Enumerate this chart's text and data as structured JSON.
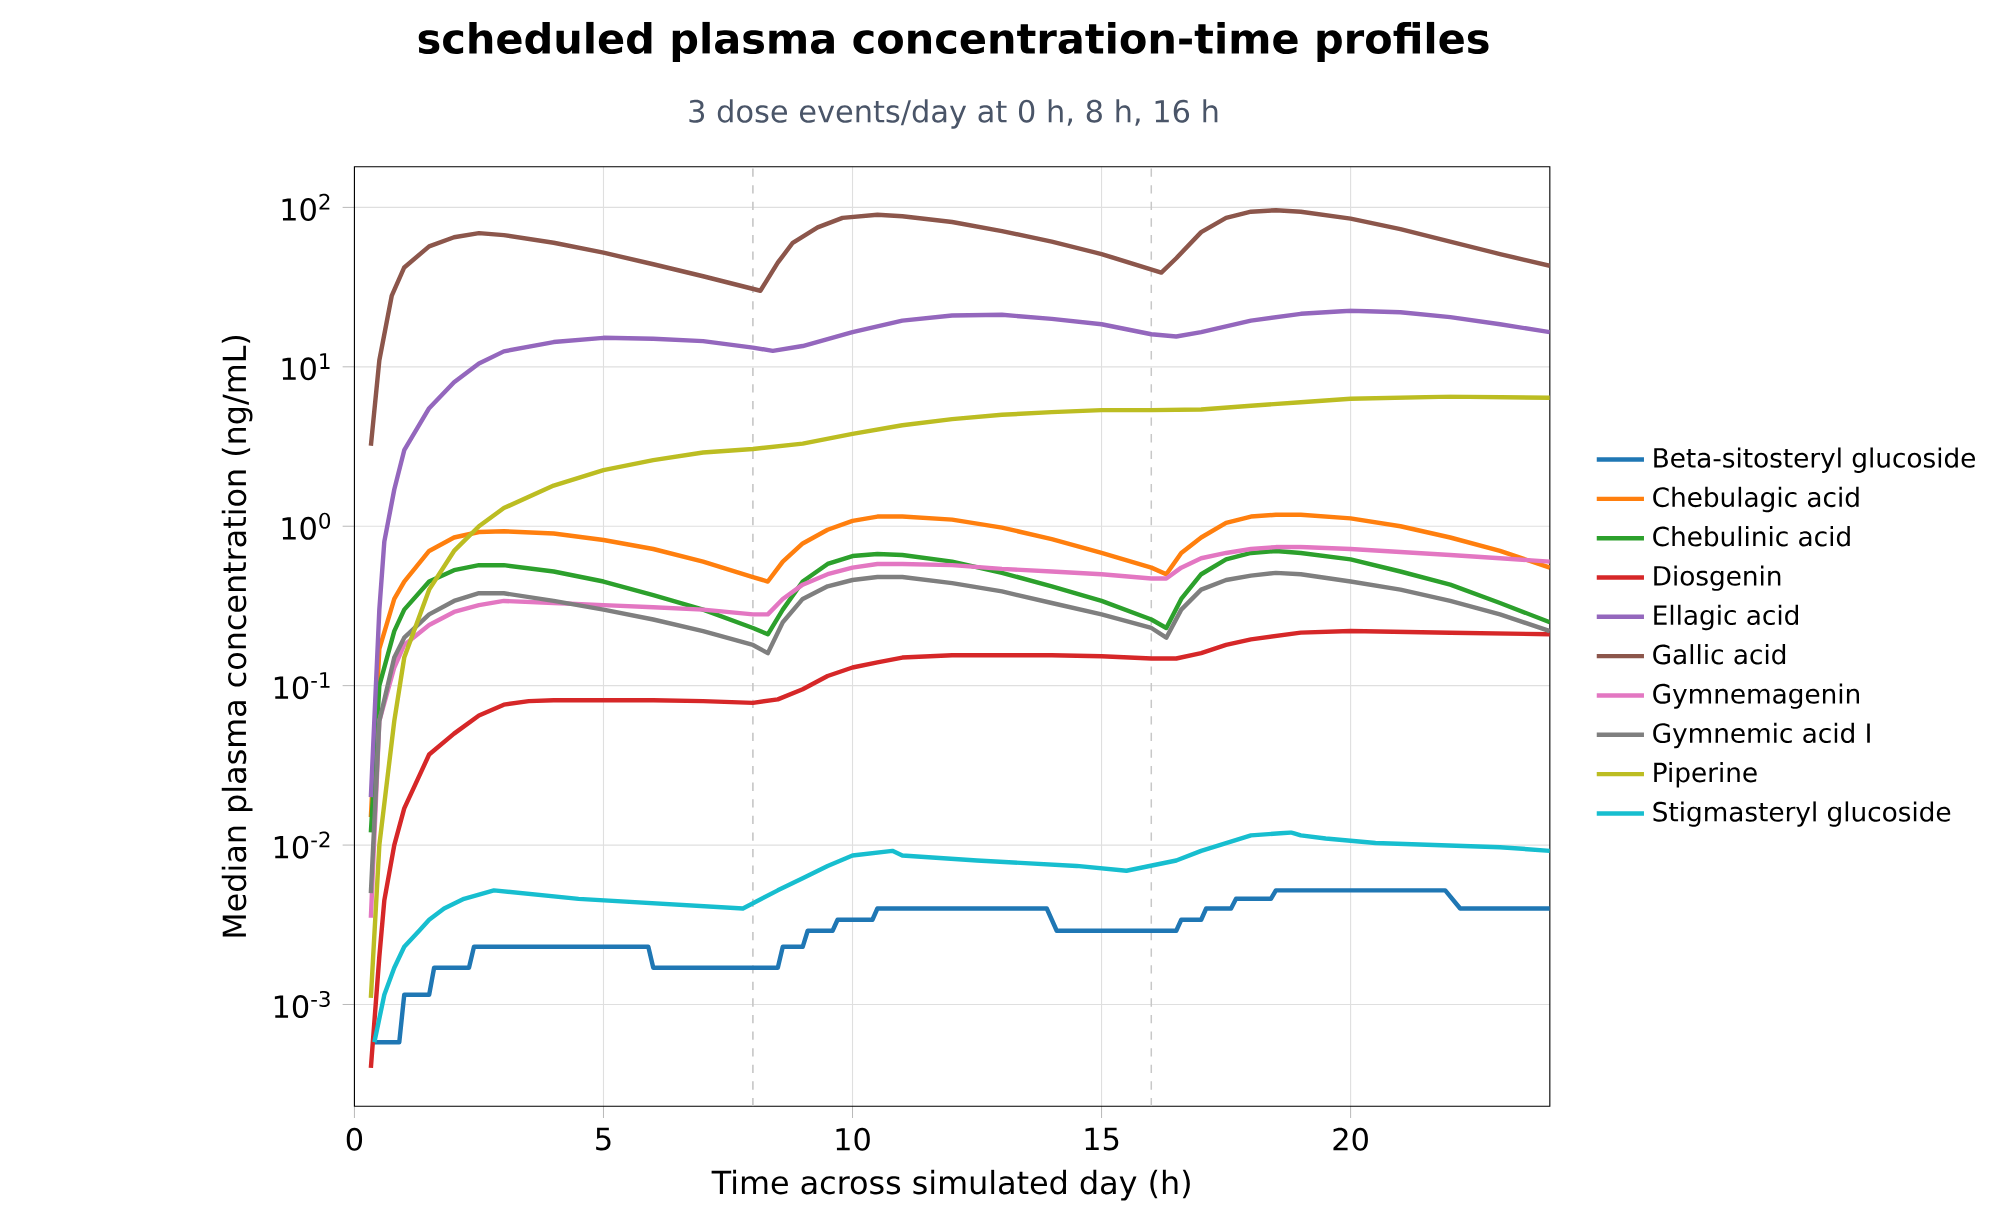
{
  "chart_data": {
    "type": "line",
    "title": "scheduled plasma concentration-time profiles",
    "subtitle": "3 dose events/day at 0 h, 8 h, 16 h",
    "xlabel": "Time across simulated day (h)",
    "ylabel": "Median plasma concentration (ng/mL)",
    "xlim": [
      0,
      24
    ],
    "xticks": [
      0,
      5,
      10,
      15,
      20
    ],
    "ylim": [
      0.00023,
      180
    ],
    "yticks": [
      {
        "value": 0.001,
        "label": "10$^{-3}$"
      },
      {
        "value": 0.01,
        "label": "10$^{-2}$"
      },
      {
        "value": 0.1,
        "label": "10$^{-1}$"
      },
      {
        "value": 1,
        "label": "10$^{0}$"
      },
      {
        "value": 10,
        "label": "10$^{1}$"
      },
      {
        "value": 100,
        "label": "10$^{2}$"
      }
    ],
    "log": "y",
    "grid": true,
    "legend": "right",
    "line_style": "solid",
    "ref_lines": [
      {
        "axis": "x",
        "value": 8,
        "color": "#c8c8c8",
        "line_style": "dashed"
      },
      {
        "axis": "x",
        "value": 16,
        "color": "#c8c8c8",
        "line_style": "dashed"
      }
    ],
    "series": [
      {
        "name": "Beta-sitosteryl glucoside",
        "color": "#1f77b4",
        "x": [
          0.4,
          0.9,
          1.0,
          1.5,
          1.6,
          2.3,
          2.4,
          5.9,
          6.0,
          8.5,
          8.6,
          9.0,
          9.1,
          9.6,
          9.7,
          10.4,
          10.5,
          13.9,
          14.1,
          16.5,
          16.6,
          17.0,
          17.1,
          17.6,
          17.7,
          18.4,
          18.5,
          21.9,
          22.2,
          24
        ],
        "values": [
          0.00058,
          0.00058,
          0.00115,
          0.00115,
          0.0017,
          0.0017,
          0.0023,
          0.0023,
          0.0017,
          0.0017,
          0.0023,
          0.0023,
          0.0029,
          0.0029,
          0.0034,
          0.0034,
          0.004,
          0.004,
          0.0029,
          0.0029,
          0.0034,
          0.0034,
          0.004,
          0.004,
          0.0046,
          0.0046,
          0.0052,
          0.0052,
          0.004,
          0.004
        ]
      },
      {
        "name": "Chebulagic acid",
        "color": "#ff7f0e",
        "x": [
          0.33,
          0.5,
          0.8,
          1,
          1.5,
          2,
          2.5,
          3,
          4,
          5,
          6,
          7,
          8,
          8.3,
          8.6,
          9,
          9.5,
          10,
          10.5,
          11,
          12,
          13,
          14,
          15,
          16,
          16.3,
          16.6,
          17,
          17.5,
          18,
          18.5,
          19,
          20,
          21,
          22,
          23,
          24
        ],
        "values": [
          0.015,
          0.17,
          0.35,
          0.45,
          0.7,
          0.85,
          0.92,
          0.93,
          0.9,
          0.82,
          0.72,
          0.6,
          0.48,
          0.45,
          0.6,
          0.78,
          0.95,
          1.08,
          1.15,
          1.15,
          1.1,
          0.98,
          0.83,
          0.68,
          0.55,
          0.5,
          0.68,
          0.85,
          1.05,
          1.15,
          1.18,
          1.18,
          1.12,
          1.0,
          0.85,
          0.7,
          0.55
        ]
      },
      {
        "name": "Chebulinic acid",
        "color": "#2ca02c",
        "x": [
          0.33,
          0.5,
          0.8,
          1,
          1.5,
          2,
          2.5,
          3,
          4,
          5,
          6,
          7,
          8,
          8.3,
          8.6,
          9,
          9.5,
          10,
          10.5,
          11,
          12,
          13,
          14,
          15,
          16,
          16.3,
          16.6,
          17,
          17.5,
          18,
          18.5,
          19,
          20,
          21,
          22,
          23,
          24
        ],
        "values": [
          0.012,
          0.1,
          0.22,
          0.3,
          0.45,
          0.53,
          0.57,
          0.57,
          0.52,
          0.45,
          0.37,
          0.3,
          0.23,
          0.21,
          0.3,
          0.45,
          0.58,
          0.65,
          0.67,
          0.66,
          0.6,
          0.51,
          0.42,
          0.34,
          0.26,
          0.23,
          0.35,
          0.5,
          0.62,
          0.68,
          0.7,
          0.68,
          0.62,
          0.52,
          0.43,
          0.33,
          0.25
        ]
      },
      {
        "name": "Diosgenin",
        "color": "#d62728",
        "x": [
          0.33,
          0.5,
          0.6,
          0.8,
          1,
          1.5,
          2,
          2.5,
          3,
          3.5,
          4,
          5,
          6,
          7,
          8,
          8.5,
          9,
          9.5,
          10,
          10.5,
          11,
          12,
          13,
          14,
          15,
          16,
          16.5,
          17,
          17.5,
          18,
          19,
          20,
          22,
          24
        ],
        "values": [
          0.0004,
          0.002,
          0.0045,
          0.01,
          0.017,
          0.037,
          0.05,
          0.065,
          0.076,
          0.08,
          0.081,
          0.081,
          0.081,
          0.08,
          0.078,
          0.082,
          0.095,
          0.115,
          0.13,
          0.14,
          0.15,
          0.155,
          0.155,
          0.155,
          0.153,
          0.148,
          0.148,
          0.16,
          0.18,
          0.195,
          0.215,
          0.22,
          0.215,
          0.21
        ]
      },
      {
        "name": "Ellagic acid",
        "color": "#9467bd",
        "x": [
          0.33,
          0.5,
          0.6,
          0.8,
          1,
          1.5,
          2,
          2.5,
          3,
          4,
          5,
          6,
          7,
          8,
          8.4,
          9,
          10,
          11,
          12,
          13,
          14,
          15,
          16,
          16.5,
          17,
          18,
          19,
          20,
          21,
          22,
          23,
          24
        ],
        "values": [
          0.02,
          0.3,
          0.8,
          1.7,
          3,
          5.5,
          8,
          10.5,
          12.5,
          14.3,
          15.2,
          15,
          14.5,
          13.2,
          12.6,
          13.5,
          16.5,
          19.5,
          21,
          21.2,
          20,
          18.5,
          16,
          15.5,
          16.5,
          19.5,
          21.5,
          22.5,
          22,
          20.5,
          18.5,
          16.5
        ]
      },
      {
        "name": "Gallic acid",
        "color": "#8c564b",
        "x": [
          0.33,
          0.5,
          0.75,
          1,
          1.5,
          2,
          2.5,
          3,
          4,
          5,
          6,
          7,
          8.15,
          8.5,
          8.8,
          9.3,
          9.8,
          10.5,
          11,
          12,
          13,
          14,
          15,
          16.2,
          16.5,
          17,
          17.5,
          18,
          18.5,
          19,
          20,
          21,
          22,
          23,
          24
        ],
        "values": [
          3.2,
          11,
          28,
          42,
          57,
          65,
          69,
          67,
          60,
          52,
          44,
          37,
          30,
          45,
          60,
          75,
          86,
          90,
          88,
          81,
          71,
          61,
          51,
          39,
          48,
          70,
          86,
          94,
          96,
          94,
          85,
          73,
          61,
          51,
          43
        ]
      },
      {
        "name": "Gymnemagenin",
        "color": "#e377c2",
        "x": [
          0.33,
          0.5,
          0.8,
          1,
          1.5,
          2,
          2.5,
          3,
          4,
          5,
          6,
          7,
          8,
          8.3,
          8.6,
          9,
          9.5,
          10,
          10.5,
          11,
          12,
          13,
          14,
          15,
          16,
          16.3,
          16.6,
          17,
          17.5,
          18,
          18.5,
          19,
          20,
          21,
          22,
          23,
          24
        ],
        "values": [
          0.0035,
          0.06,
          0.13,
          0.18,
          0.24,
          0.29,
          0.32,
          0.34,
          0.33,
          0.32,
          0.31,
          0.3,
          0.28,
          0.28,
          0.35,
          0.43,
          0.5,
          0.55,
          0.58,
          0.58,
          0.57,
          0.54,
          0.52,
          0.5,
          0.47,
          0.47,
          0.55,
          0.63,
          0.68,
          0.72,
          0.74,
          0.74,
          0.72,
          0.69,
          0.66,
          0.63,
          0.6
        ]
      },
      {
        "name": "Gymnemic acid I",
        "color": "#7f7f7f",
        "x": [
          0.33,
          0.5,
          0.8,
          1,
          1.5,
          2,
          2.5,
          3,
          4,
          5,
          6,
          7,
          8,
          8.3,
          8.6,
          9,
          9.5,
          10,
          10.5,
          11,
          12,
          13,
          14,
          15,
          16,
          16.3,
          16.6,
          17,
          17.5,
          18,
          18.5,
          19,
          20,
          21,
          22,
          23,
          24
        ],
        "values": [
          0.005,
          0.06,
          0.15,
          0.2,
          0.28,
          0.34,
          0.38,
          0.38,
          0.34,
          0.3,
          0.26,
          0.22,
          0.18,
          0.16,
          0.25,
          0.35,
          0.42,
          0.46,
          0.48,
          0.48,
          0.44,
          0.39,
          0.33,
          0.28,
          0.23,
          0.2,
          0.3,
          0.4,
          0.46,
          0.49,
          0.51,
          0.5,
          0.45,
          0.4,
          0.34,
          0.28,
          0.22
        ]
      },
      {
        "name": "Piperine",
        "color": "#bcbd22",
        "x": [
          0.33,
          0.5,
          0.8,
          1,
          1.5,
          2,
          2.5,
          3,
          4,
          5,
          6,
          7,
          8,
          9,
          10,
          11,
          12,
          13,
          14,
          15,
          16,
          17,
          18,
          19,
          20,
          22,
          24
        ],
        "values": [
          0.0011,
          0.01,
          0.06,
          0.15,
          0.4,
          0.7,
          1.0,
          1.3,
          1.8,
          2.25,
          2.6,
          2.9,
          3.05,
          3.3,
          3.8,
          4.3,
          4.7,
          5.0,
          5.2,
          5.35,
          5.35,
          5.4,
          5.7,
          6.0,
          6.3,
          6.5,
          6.4
        ]
      },
      {
        "name": "Stigmasteryl glucoside",
        "color": "#17becf",
        "x": [
          0.4,
          0.6,
          0.8,
          1,
          1.3,
          1.5,
          1.8,
          2.2,
          2.8,
          4.5,
          7.8,
          8.5,
          9,
          9.5,
          10,
          10.8,
          11,
          12.5,
          14.5,
          15.5,
          16.5,
          17,
          17.5,
          18,
          18.8,
          19,
          19.5,
          20.5,
          23,
          24
        ],
        "values": [
          0.00058,
          0.00115,
          0.0017,
          0.0023,
          0.0029,
          0.0034,
          0.004,
          0.0046,
          0.0052,
          0.0046,
          0.004,
          0.0052,
          0.0062,
          0.0074,
          0.0086,
          0.0092,
          0.0086,
          0.008,
          0.0074,
          0.0069,
          0.008,
          0.0092,
          0.0103,
          0.0115,
          0.012,
          0.0115,
          0.011,
          0.0103,
          0.0097,
          0.0092
        ]
      }
    ]
  }
}
